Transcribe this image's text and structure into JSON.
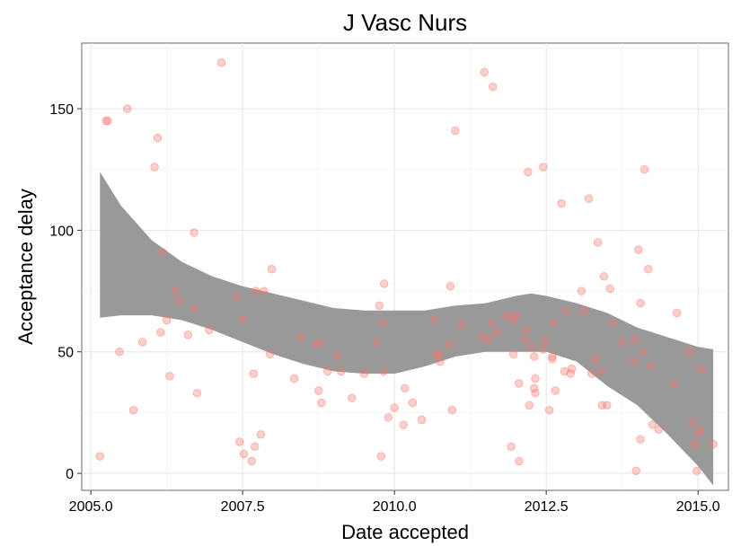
{
  "chart_data": {
    "type": "scatter",
    "title": "J Vasc Nurs",
    "xlabel": "Date accepted",
    "ylabel": "Acceptance delay",
    "xlim": [
      2004.85,
      2015.5
    ],
    "ylim": [
      -7,
      177
    ],
    "x_ticks": [
      2005.0,
      2007.5,
      2010.0,
      2012.5,
      2015.0
    ],
    "x_tick_labels": [
      "2005.0",
      "2007.5",
      "2010.0",
      "2012.5",
      "2015.0"
    ],
    "y_ticks": [
      0,
      50,
      100,
      150
    ],
    "y_tick_labels": [
      "0",
      "50",
      "100",
      "150"
    ],
    "grid": true,
    "point_color": "#f8766d",
    "band_color": "#999999",
    "points": [
      [
        2005.15,
        7
      ],
      [
        2005.25,
        145
      ],
      [
        2005.28,
        145
      ],
      [
        2005.47,
        50
      ],
      [
        2005.6,
        150
      ],
      [
        2005.7,
        26
      ],
      [
        2005.85,
        54
      ],
      [
        2006.05,
        126
      ],
      [
        2006.1,
        138
      ],
      [
        2006.15,
        58
      ],
      [
        2006.18,
        91
      ],
      [
        2006.25,
        63
      ],
      [
        2006.3,
        40
      ],
      [
        2006.4,
        75
      ],
      [
        2006.45,
        71
      ],
      [
        2006.6,
        57
      ],
      [
        2006.7,
        68
      ],
      [
        2006.7,
        99
      ],
      [
        2006.75,
        33
      ],
      [
        2006.95,
        59
      ],
      [
        2007.15,
        169
      ],
      [
        2007.4,
        73
      ],
      [
        2007.45,
        13
      ],
      [
        2007.5,
        63
      ],
      [
        2007.52,
        8
      ],
      [
        2007.65,
        5
      ],
      [
        2007.68,
        41
      ],
      [
        2007.7,
        11
      ],
      [
        2007.72,
        75
      ],
      [
        2007.8,
        16
      ],
      [
        2007.85,
        75
      ],
      [
        2007.95,
        49
      ],
      [
        2007.98,
        84
      ],
      [
        2008.35,
        39
      ],
      [
        2008.45,
        56
      ],
      [
        2008.7,
        53
      ],
      [
        2008.75,
        34
      ],
      [
        2008.78,
        54
      ],
      [
        2008.8,
        29
      ],
      [
        2008.9,
        42
      ],
      [
        2009.05,
        48
      ],
      [
        2009.12,
        42
      ],
      [
        2009.3,
        31
      ],
      [
        2009.5,
        41
      ],
      [
        2009.7,
        54
      ],
      [
        2009.75,
        69
      ],
      [
        2009.78,
        7
      ],
      [
        2009.8,
        62
      ],
      [
        2009.82,
        42
      ],
      [
        2009.83,
        78
      ],
      [
        2009.9,
        23
      ],
      [
        2010.0,
        27
      ],
      [
        2010.15,
        20
      ],
      [
        2010.17,
        35
      ],
      [
        2010.3,
        29
      ],
      [
        2010.45,
        22
      ],
      [
        2010.65,
        63
      ],
      [
        2010.7,
        49
      ],
      [
        2010.73,
        49
      ],
      [
        2010.75,
        46
      ],
      [
        2010.9,
        53
      ],
      [
        2010.92,
        77
      ],
      [
        2010.95,
        26
      ],
      [
        2011.0,
        141
      ],
      [
        2011.1,
        61
      ],
      [
        2011.45,
        56
      ],
      [
        2011.48,
        165
      ],
      [
        2011.55,
        55
      ],
      [
        2011.6,
        62
      ],
      [
        2011.62,
        159
      ],
      [
        2011.68,
        58
      ],
      [
        2011.85,
        65
      ],
      [
        2011.95,
        63
      ],
      [
        2012.0,
        65
      ],
      [
        2011.92,
        11
      ],
      [
        2011.96,
        49
      ],
      [
        2012.05,
        5
      ],
      [
        2012.05,
        37
      ],
      [
        2012.15,
        55
      ],
      [
        2012.18,
        59
      ],
      [
        2012.2,
        124
      ],
      [
        2012.22,
        28
      ],
      [
        2012.25,
        52
      ],
      [
        2012.3,
        48
      ],
      [
        2012.3,
        35
      ],
      [
        2012.32,
        33
      ],
      [
        2012.32,
        39
      ],
      [
        2012.45,
        126
      ],
      [
        2012.45,
        51
      ],
      [
        2012.48,
        55
      ],
      [
        2012.55,
        26
      ],
      [
        2012.6,
        47
      ],
      [
        2012.6,
        48
      ],
      [
        2012.62,
        62
      ],
      [
        2012.65,
        34
      ],
      [
        2012.75,
        111
      ],
      [
        2012.8,
        42
      ],
      [
        2012.82,
        67
      ],
      [
        2012.9,
        41
      ],
      [
        2012.92,
        43
      ],
      [
        2013.08,
        75
      ],
      [
        2013.12,
        67
      ],
      [
        2013.2,
        113
      ],
      [
        2013.25,
        41
      ],
      [
        2013.3,
        47
      ],
      [
        2013.35,
        95
      ],
      [
        2013.4,
        42
      ],
      [
        2013.42,
        28
      ],
      [
        2013.45,
        81
      ],
      [
        2013.5,
        28
      ],
      [
        2013.55,
        76
      ],
      [
        2013.6,
        62
      ],
      [
        2013.75,
        54
      ],
      [
        2013.95,
        55
      ],
      [
        2013.95,
        46
      ],
      [
        2013.98,
        1
      ],
      [
        2014.02,
        92
      ],
      [
        2014.05,
        14
      ],
      [
        2014.05,
        70
      ],
      [
        2014.1,
        50
      ],
      [
        2014.12,
        125
      ],
      [
        2014.18,
        84
      ],
      [
        2014.22,
        44
      ],
      [
        2014.25,
        20
      ],
      [
        2014.35,
        18
      ],
      [
        2014.6,
        37
      ],
      [
        2014.65,
        66
      ],
      [
        2014.85,
        50
      ],
      [
        2014.9,
        21
      ],
      [
        2014.95,
        12
      ],
      [
        2014.98,
        1
      ],
      [
        2015.0,
        16
      ],
      [
        2015.03,
        18
      ],
      [
        2015.06,
        43
      ],
      [
        2015.25,
        12
      ]
    ],
    "band": {
      "x": [
        2005.15,
        2005.5,
        2006.0,
        2006.5,
        2007.0,
        2007.5,
        2008.0,
        2008.5,
        2009.0,
        2009.5,
        2010.0,
        2010.5,
        2011.0,
        2011.5,
        2012.0,
        2012.25,
        2012.5,
        2013.0,
        2013.5,
        2014.0,
        2014.5,
        2015.0,
        2015.25
      ],
      "upper": [
        124,
        110,
        96,
        87,
        81,
        77,
        74,
        71,
        68,
        67,
        67,
        67,
        69,
        70,
        73,
        74,
        73,
        70,
        66,
        60,
        56,
        52,
        51
      ],
      "lower": [
        64,
        65,
        65,
        63,
        59,
        54,
        49,
        45,
        42,
        41,
        41,
        44,
        48,
        50,
        50,
        50,
        50,
        46,
        36,
        28,
        16,
        3,
        -5
      ]
    }
  }
}
